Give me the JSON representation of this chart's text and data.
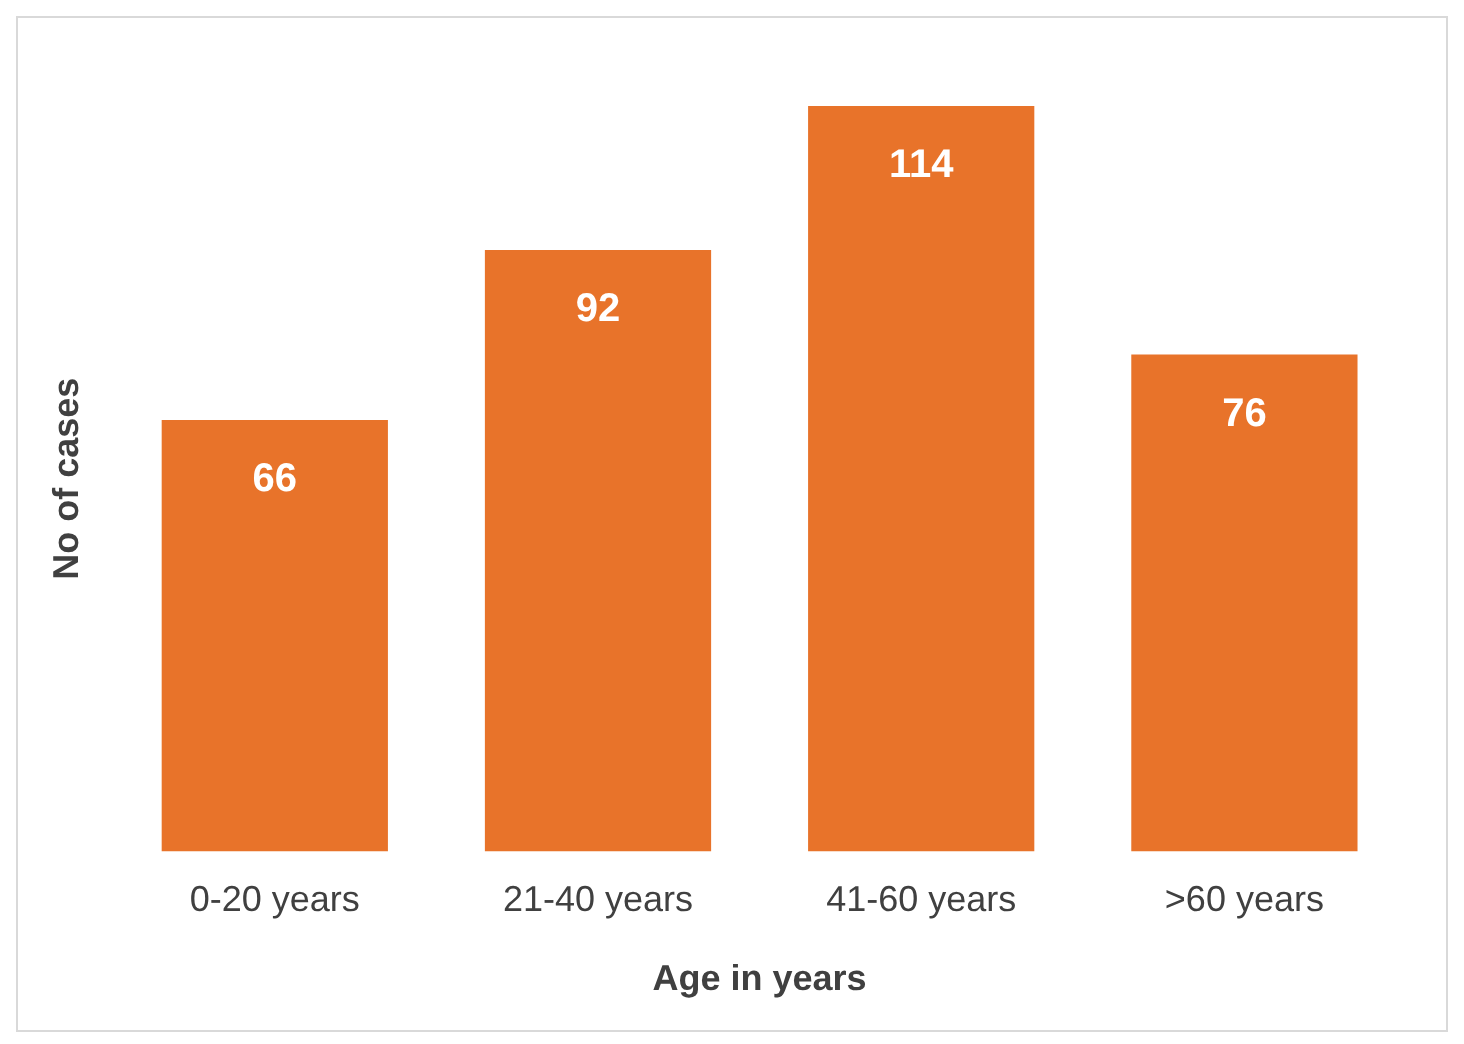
{
  "chart_data": {
    "type": "bar",
    "xlabel": "Age in years",
    "ylabel": "No of cases",
    "categories": [
      "0-20 years",
      "21-40 years",
      "41-60 years",
      ">60 years"
    ],
    "values": [
      66,
      92,
      114,
      76
    ],
    "color": "#e8732a",
    "data_labels": true,
    "grid": false,
    "legend": false
  }
}
